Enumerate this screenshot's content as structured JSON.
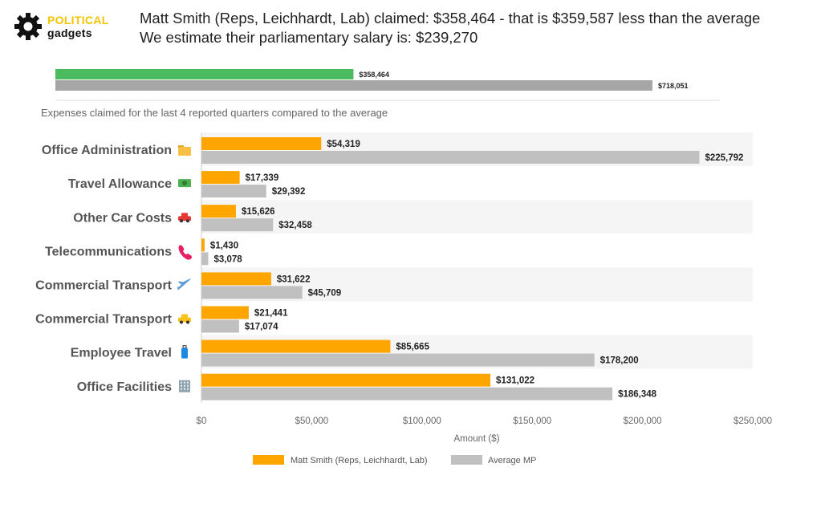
{
  "logo": {
    "line1": "POLITICAL",
    "line2": "gadgets"
  },
  "headline": {
    "line1": "Matt Smith (Reps, Leichhardt, Lab) claimed: $358,464 - that is $359,587 less than the average",
    "line2": "We estimate their parliamentary salary is: $239,270"
  },
  "subtitle": "Expenses claimed for the last 4 reported quarters compared to the average",
  "colors": {
    "total_mp": "#4cbb5f",
    "total_avg": "#a6a6a6",
    "mp": "#ffa500",
    "avg": "#c0c0c0"
  },
  "chart_data": [
    {
      "type": "bar",
      "orientation": "horizontal",
      "series": [
        {
          "name": "",
          "values": [
            358464
          ],
          "labels": [
            "$358,464"
          ]
        },
        {
          "name": "",
          "values": [
            718051
          ],
          "labels": [
            "$718,051"
          ]
        }
      ],
      "xlim": [
        0,
        860000
      ]
    },
    {
      "type": "bar",
      "orientation": "horizontal",
      "categories": [
        "Office Administration",
        "Travel Allowance",
        "Other Car Costs",
        "Telecommunications",
        "Commercial Transport",
        "Commercial Transport",
        "Employee Travel",
        "Office Facilities"
      ],
      "category_icons": [
        "folder-icon",
        "money-icon",
        "car-icon",
        "phone-icon",
        "airplane-icon",
        "taxi-icon",
        "luggage-icon",
        "office-building-icon"
      ],
      "series": [
        {
          "name": "Matt Smith  (Reps, Leichhardt, Lab)",
          "values": [
            54319,
            17339,
            15626,
            1430,
            31622,
            21441,
            85665,
            131022
          ],
          "labels": [
            "$54,319",
            "$17,339",
            "$15,626",
            "$1,430",
            "$31,622",
            "$21,441",
            "$85,665",
            "$131,022"
          ]
        },
        {
          "name": "Average MP",
          "values": [
            225792,
            29392,
            32458,
            3078,
            45709,
            17074,
            178200,
            186348
          ],
          "labels": [
            "$225,792",
            "$29,392",
            "$32,458",
            "$3,078",
            "$45,709",
            "$17,074",
            "$178,200",
            "$186,348"
          ]
        }
      ],
      "xlabel": "Amount ($)",
      "ylabel": "",
      "xlim": [
        0,
        250000
      ],
      "xticks": [
        0,
        50000,
        100000,
        150000,
        200000,
        250000
      ],
      "xtick_labels": [
        "$0",
        "$50,000",
        "$100,000",
        "$150,000",
        "$200,000",
        "$250,000"
      ],
      "legend_position": "bottom",
      "grid": false
    }
  ]
}
